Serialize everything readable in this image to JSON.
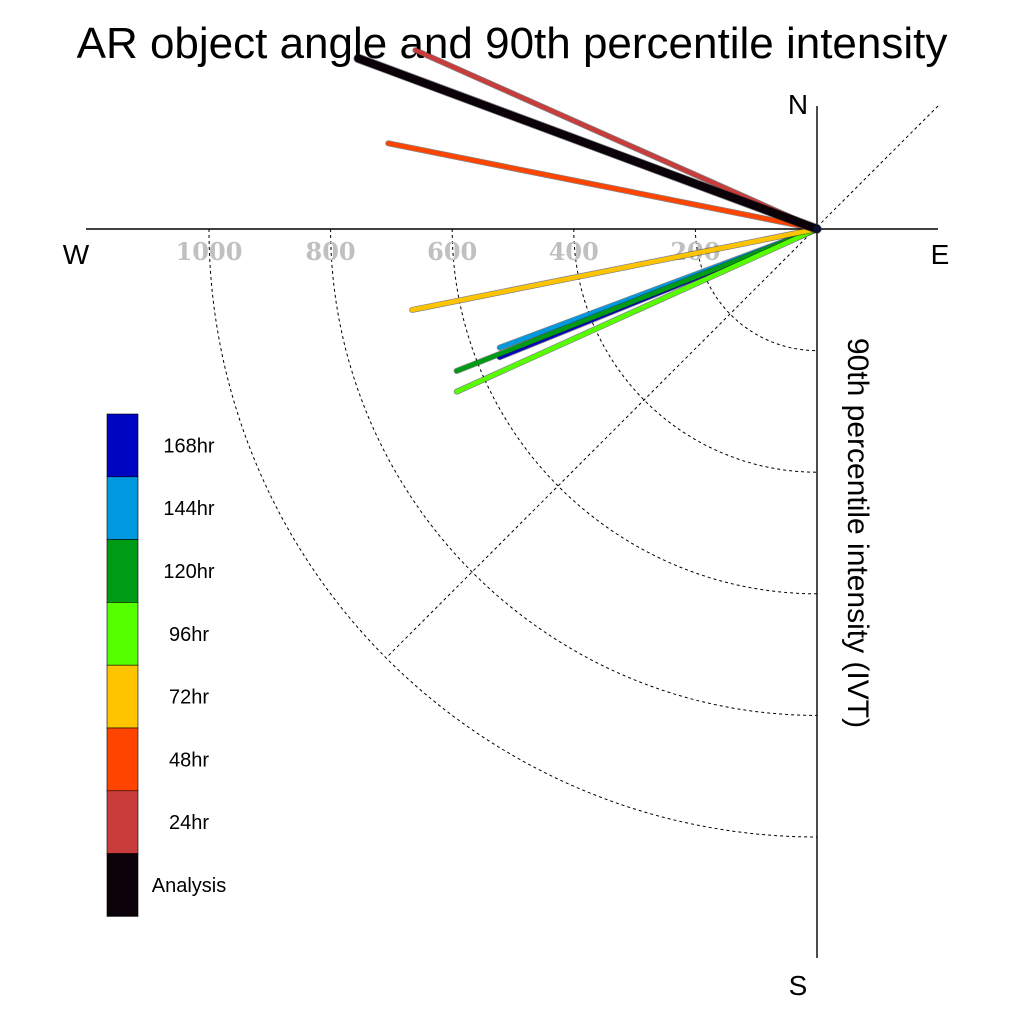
{
  "chart_data": {
    "type": "polar-vector",
    "title": "AR object angle and 90th percentile intensity",
    "radial_axis_label": "90th percentile intensity (IVT)",
    "compass": {
      "north": "N",
      "south": "S",
      "east": "E",
      "west": "W"
    },
    "radial_ticks": [
      200,
      400,
      600,
      800,
      1000
    ],
    "radial_tick_labels": [
      "200",
      "400",
      "600",
      "800",
      "1000"
    ],
    "radial_max": 1200,
    "grid": true,
    "legend_position": "left",
    "series": [
      {
        "name": "Analysis",
        "angle_deg_from_north": 290.4,
        "intensity": 805,
        "color": "#0a0208"
      },
      {
        "name": "24hr",
        "angle_deg_from_north": 294.0,
        "intensity": 723,
        "color": "#c83c3c"
      },
      {
        "name": "48hr",
        "angle_deg_from_north": 281.3,
        "intensity": 719,
        "color": "#ff4400"
      },
      {
        "name": "72hr",
        "angle_deg_from_north": 258.7,
        "intensity": 679,
        "color": "#ffc400"
      },
      {
        "name": "96hr",
        "angle_deg_from_north": 245.7,
        "intensity": 650,
        "color": "#55ff00"
      },
      {
        "name": "120hr",
        "angle_deg_from_north": 248.5,
        "intensity": 637,
        "color": "#009b14"
      },
      {
        "name": "144hr",
        "angle_deg_from_north": 249.5,
        "intensity": 557,
        "color": "#0099e0"
      },
      {
        "name": "168hr",
        "angle_deg_from_north": 248.0,
        "intensity": 563,
        "color": "#0005c2"
      }
    ],
    "legend_order": [
      "168hr",
      "144hr",
      "120hr",
      "96hr",
      "72hr",
      "48hr",
      "24hr",
      "Analysis"
    ]
  }
}
